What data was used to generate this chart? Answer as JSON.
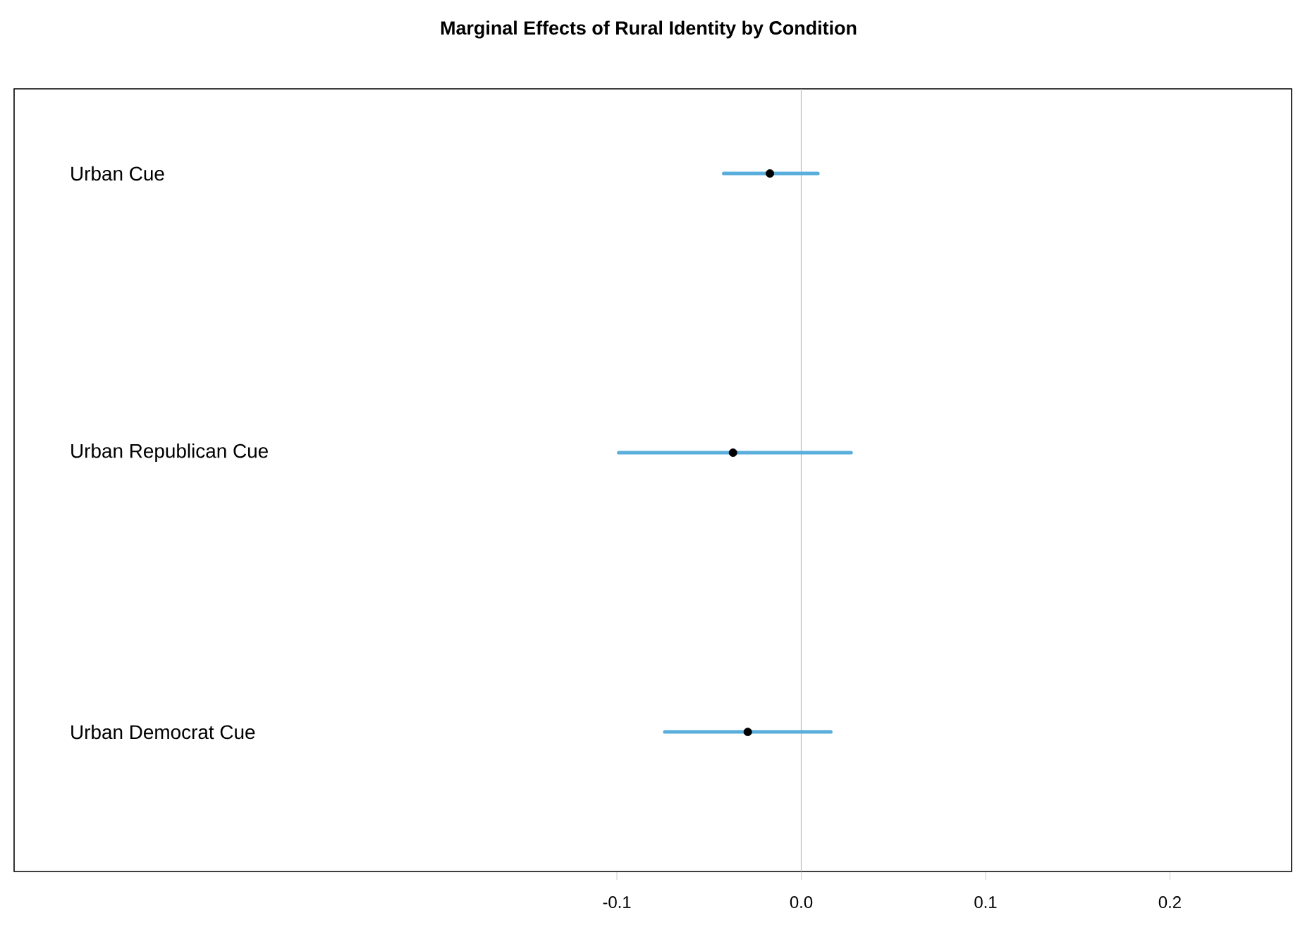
{
  "chart_data": {
    "type": "scatter",
    "orientation": "horizontal",
    "title": "Marginal Effects of Rural Identity by Condition",
    "categories": [
      "Urban Cue",
      "Urban Republican Cue",
      "Urban Democrat Cue"
    ],
    "values": [
      -0.017,
      -0.037,
      -0.029
    ],
    "errors": [
      [
        -0.042,
        0.009
      ],
      [
        -0.099,
        0.027
      ],
      [
        -0.074,
        0.016
      ]
    ],
    "color": "#000000",
    "xlim": [
      -0.427,
      0.266
    ],
    "xticks": [
      {
        "value": -0.1,
        "label": "-0.1"
      },
      {
        "value": 0.0,
        "label": "0.0"
      },
      {
        "value": 0.1,
        "label": "0.1"
      },
      {
        "value": 0.2,
        "label": "0.2"
      }
    ],
    "ref_lines": [
      {
        "axis": "x",
        "value": 0,
        "color": "#bebebe"
      }
    ],
    "grid": false
  }
}
